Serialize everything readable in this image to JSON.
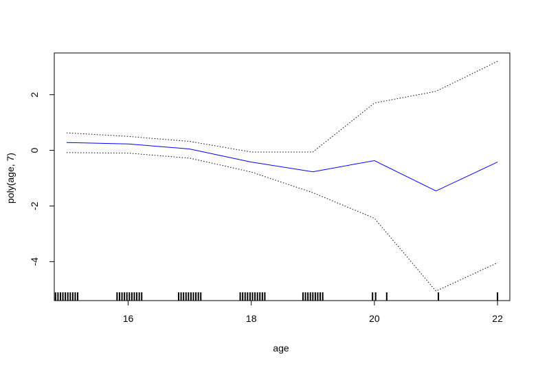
{
  "chart_data": {
    "type": "line",
    "title": "",
    "xlabel": "age",
    "ylabel": "poly(age, 7)",
    "xlim": [
      14.8,
      22.2
    ],
    "ylim": [
      -5.4,
      3.5
    ],
    "x_ticks": [
      16,
      18,
      20,
      22
    ],
    "x_tick_labels": [
      "16",
      "18",
      "20",
      "22"
    ],
    "y_ticks": [
      -4,
      -2,
      0,
      2
    ],
    "y_tick_labels": [
      "-4",
      "-2",
      "0",
      "2"
    ],
    "grid": false,
    "legend": "none",
    "series": [
      {
        "role": "fit",
        "color": "#0000ff",
        "style": "solid",
        "x": [
          15,
          16,
          17,
          18,
          19,
          20,
          21,
          22
        ],
        "y": [
          0.28,
          0.23,
          0.05,
          -0.42,
          -0.77,
          -0.37,
          -1.46,
          -0.42
        ]
      },
      {
        "role": "upper-band",
        "color": "#000000",
        "style": "dotted",
        "x": [
          15,
          16,
          17,
          18,
          19,
          20,
          21,
          22
        ],
        "y": [
          0.63,
          0.5,
          0.32,
          -0.06,
          -0.06,
          1.7,
          2.12,
          3.2
        ]
      },
      {
        "role": "lower-band",
        "color": "#000000",
        "style": "dotted",
        "x": [
          15,
          16,
          17,
          18,
          19,
          20,
          21,
          22
        ],
        "y": [
          -0.08,
          -0.1,
          -0.28,
          -0.78,
          -1.52,
          -2.44,
          -5.06,
          -4.04
        ]
      }
    ],
    "rug": {
      "color": "#000000",
      "x": [
        14.82,
        14.86,
        14.9,
        14.94,
        14.98,
        15.02,
        15.06,
        15.1,
        15.14,
        15.18,
        15.82,
        15.86,
        15.9,
        15.94,
        15.98,
        16.02,
        16.06,
        16.1,
        16.14,
        16.18,
        16.22,
        16.82,
        16.86,
        16.9,
        16.94,
        16.98,
        17.02,
        17.06,
        17.1,
        17.14,
        17.18,
        17.82,
        17.86,
        17.9,
        17.94,
        17.98,
        18.02,
        18.06,
        18.1,
        18.14,
        18.18,
        18.22,
        18.84,
        18.88,
        18.92,
        18.96,
        19.0,
        19.04,
        19.08,
        19.12,
        19.16,
        19.97,
        20.02,
        20.2,
        21.04,
        22.0
      ]
    }
  }
}
